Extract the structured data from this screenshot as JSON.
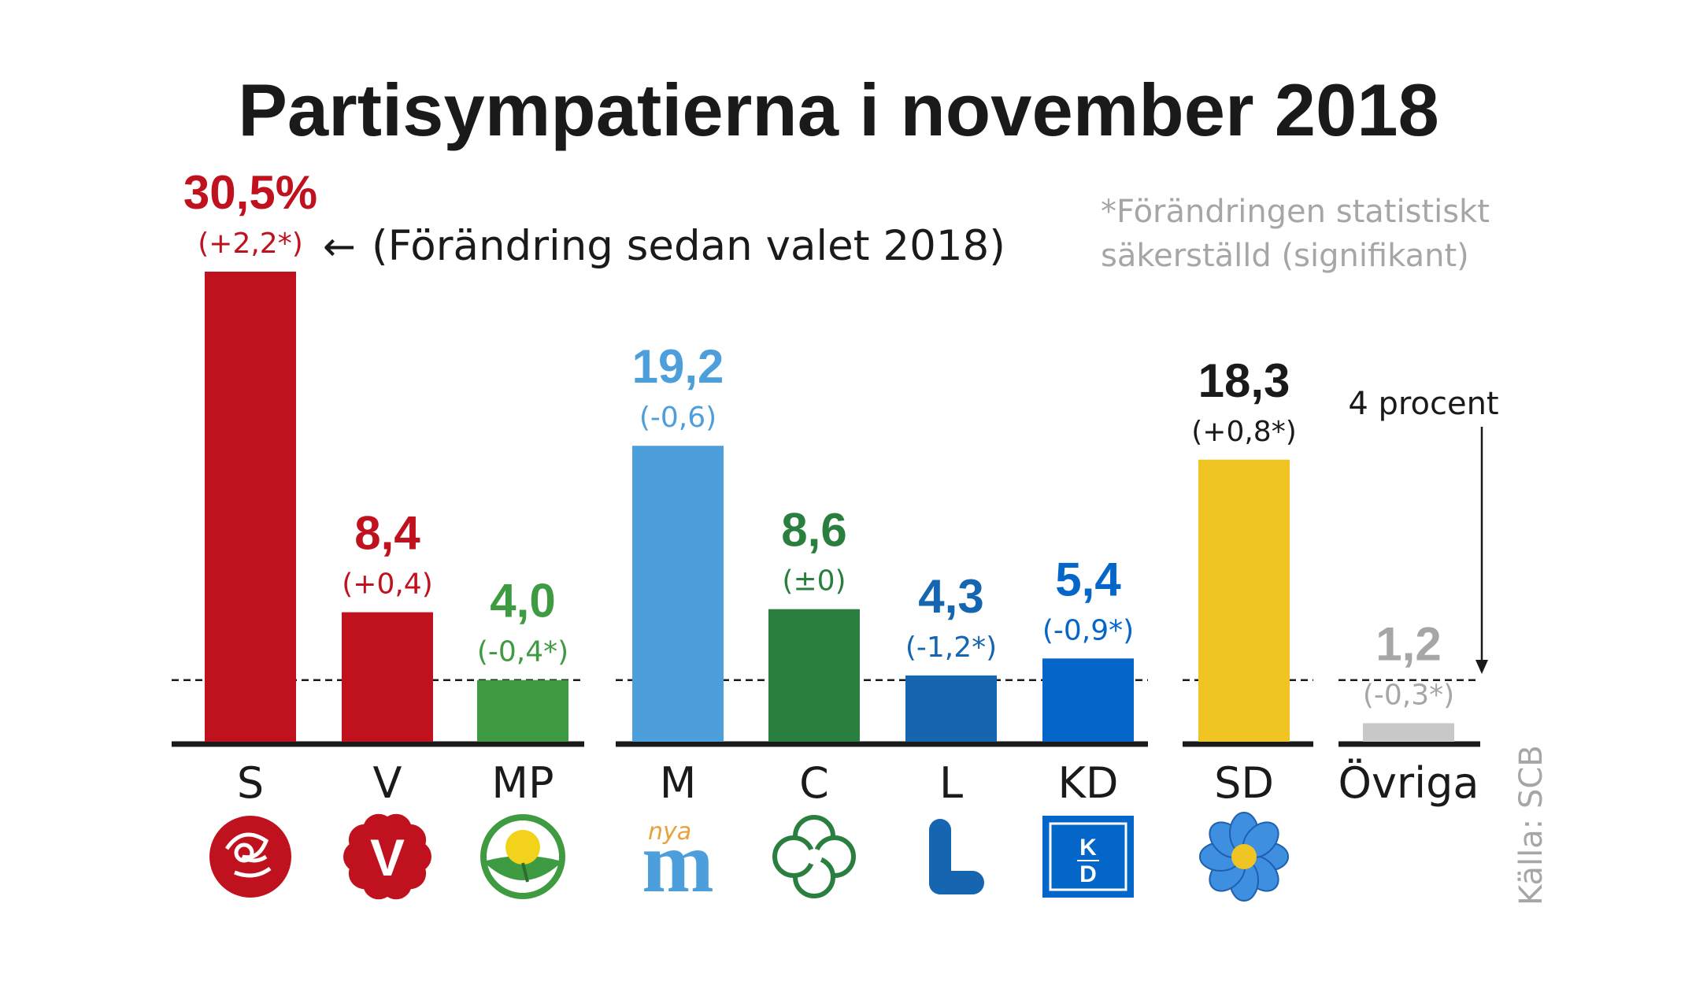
{
  "title": "Partisympatierna i november 2018",
  "annotation_arrow": "←",
  "annotation_text": "(Förändring sedan valet 2018)",
  "note_line1": "*Förändringen statistiskt",
  "note_line2": "säkerställd (signifikant)",
  "threshold_label": "4 procent",
  "source": "Källa: SCB",
  "colors": {
    "title": "#1a1a1a",
    "axis": "#1a1a1a",
    "note": "#a6a6a6",
    "dashed": "#1a1a1a"
  },
  "chart_data": {
    "type": "bar",
    "title": "Partisympatierna i november 2018",
    "xlabel": "",
    "ylabel": "",
    "ylim": [
      0,
      30.5
    ],
    "threshold": 4,
    "grid": false,
    "groups": [
      [
        "S",
        "V",
        "MP"
      ],
      [
        "M",
        "C",
        "L",
        "KD"
      ],
      [
        "SD"
      ],
      [
        "Övriga"
      ]
    ],
    "categories": [
      "S",
      "V",
      "MP",
      "M",
      "C",
      "L",
      "KD",
      "SD",
      "Övriga"
    ],
    "values": [
      30.5,
      8.4,
      4.0,
      19.2,
      8.6,
      4.3,
      5.4,
      18.3,
      1.2
    ],
    "value_labels": [
      "30,5%",
      "8,4",
      "4,0",
      "19,2",
      "8,6",
      "4,3",
      "5,4",
      "18,3",
      "1,2"
    ],
    "change_labels": [
      "(+2,2*)",
      "(+0,4)",
      "(-0,4*)",
      "(-0,6)",
      "(±0)",
      "(-1,2*)",
      "(-0,9*)",
      "(+0,8*)",
      "(-0,3*)"
    ],
    "bar_colors": [
      "#c0121e",
      "#c0121e",
      "#3e9b41",
      "#4d9fdb",
      "#2a7f3f",
      "#1565b0",
      "#0466c8",
      "#f0c523",
      "#c8c8c8"
    ],
    "label_colors": [
      "#c0121e",
      "#c0121e",
      "#3e9b41",
      "#4d9fdb",
      "#2a7f3f",
      "#1565b0",
      "#0466c8",
      "#1a1a1a",
      "#a6a6a6"
    ],
    "logos": [
      "rose-icon",
      "v-logo-icon",
      "dandelion-icon",
      "nya-m-logo-icon",
      "clover-icon",
      "l-logo-icon",
      "kd-logo-icon",
      "hepatica-flower-icon",
      ""
    ],
    "logo_texts": {
      "M": "nya",
      "KD": "K D"
    }
  }
}
